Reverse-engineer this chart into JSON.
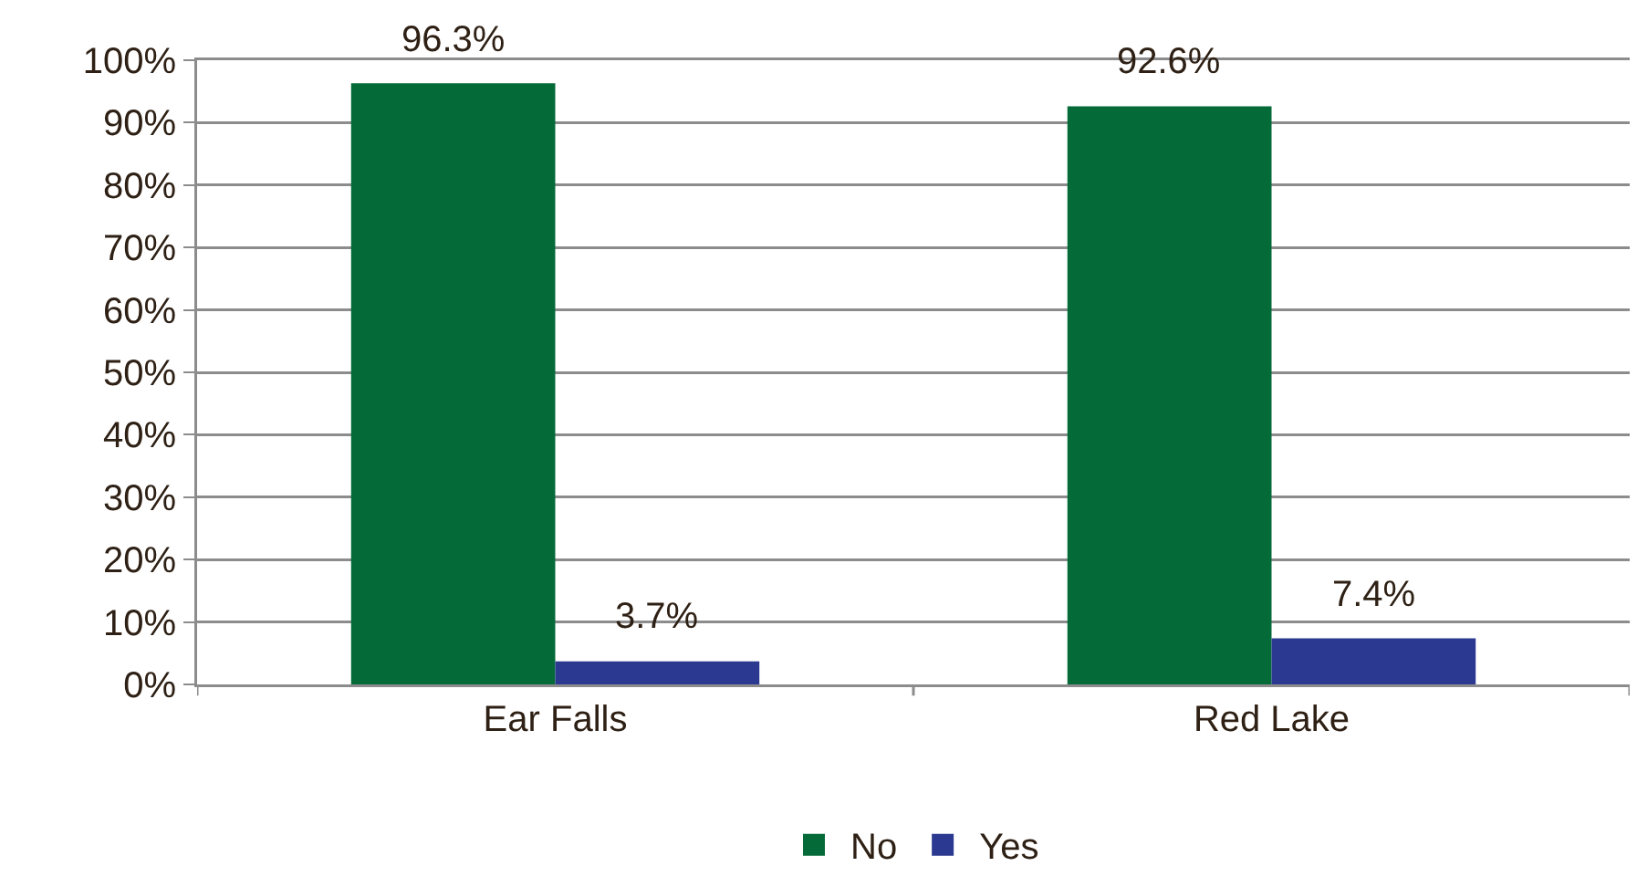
{
  "chart_data": {
    "type": "bar",
    "categories": [
      "Ear Falls",
      "Red Lake"
    ],
    "series": [
      {
        "name": "No",
        "color": "#046a38",
        "values": [
          96.3,
          92.6
        ],
        "value_labels": [
          "96.3%",
          "92.6%"
        ]
      },
      {
        "name": "Yes",
        "color": "#2b3990",
        "values": [
          3.7,
          7.4
        ],
        "value_labels": [
          "3.7%",
          "7.4%"
        ]
      }
    ],
    "ylim": [
      0,
      100
    ],
    "yticks": [
      {
        "value": 0,
        "label": "0%"
      },
      {
        "value": 10,
        "label": "10%"
      },
      {
        "value": 20,
        "label": "20%"
      },
      {
        "value": 30,
        "label": "30%"
      },
      {
        "value": 40,
        "label": "40%"
      },
      {
        "value": 50,
        "label": "50%"
      },
      {
        "value": 60,
        "label": "60%"
      },
      {
        "value": 70,
        "label": "70%"
      },
      {
        "value": 80,
        "label": "80%"
      },
      {
        "value": 90,
        "label": "90%"
      },
      {
        "value": 100,
        "label": "100%"
      }
    ],
    "grid": "y",
    "legend": "bottom"
  }
}
